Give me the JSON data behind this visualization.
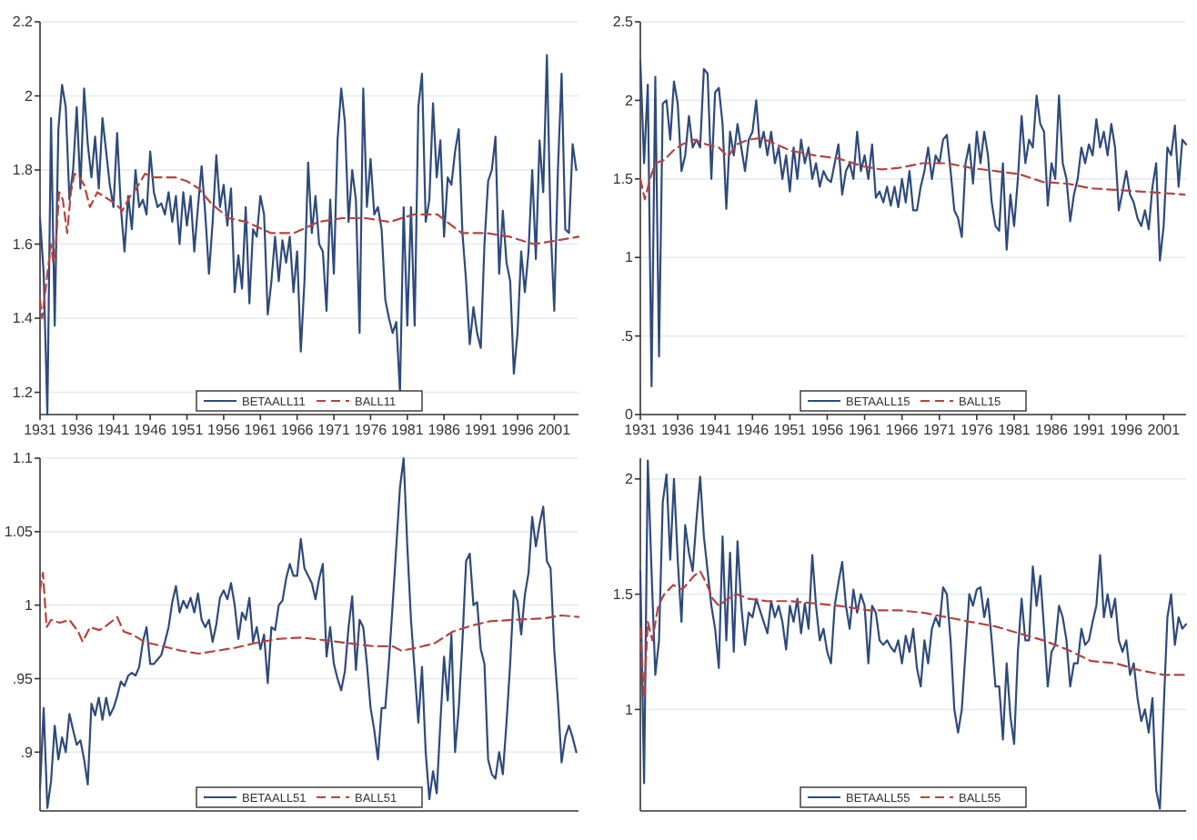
{
  "chart_data": [
    {
      "type": "line",
      "xlim": [
        1931,
        2004.3
      ],
      "ylim": [
        1.14,
        2.2
      ],
      "xticks": [
        1931,
        1936,
        1941,
        1946,
        1951,
        1956,
        1961,
        1966,
        1971,
        1976,
        1981,
        1986,
        1991,
        1996,
        2001
      ],
      "yticks": [
        1.2,
        1.4,
        1.6,
        1.8,
        2,
        2.2
      ],
      "grid": "y",
      "legend": "bottom",
      "x": [
        1931,
        1931.5,
        1932,
        1932.5,
        1933,
        1933.5,
        1934,
        1934.5,
        1935,
        1935.5,
        1936,
        1936.5,
        1937,
        1937.5,
        1938,
        1938.5,
        1939,
        1939.5,
        1940,
        1940.5,
        1941,
        1941.5,
        1942,
        1942.5,
        1943,
        1943.5,
        1944,
        1944.5,
        1945,
        1945.5,
        1946,
        1946.5,
        1947,
        1947.5,
        1948,
        1948.5,
        1949,
        1949.5,
        1950,
        1950.5,
        1951,
        1951.5,
        1952,
        1952.5,
        1953,
        1953.5,
        1954,
        1954.5,
        1955,
        1955.5,
        1956,
        1956.5,
        1957,
        1957.5,
        1958,
        1958.5,
        1959,
        1959.5,
        1960,
        1960.5,
        1961,
        1961.5,
        1962,
        1962.5,
        1963,
        1963.5,
        1964,
        1964.5,
        1965,
        1965.5,
        1966,
        1966.5,
        1967,
        1967.5,
        1968,
        1968.5,
        1969,
        1969.5,
        1970,
        1970.5,
        1971,
        1971.5,
        1972,
        1972.5,
        1973,
        1973.5,
        1974,
        1974.5,
        1975,
        1975.5,
        1976,
        1976.5,
        1977,
        1977.5,
        1978,
        1978.5,
        1979,
        1979.5,
        1980,
        1980.5,
        1981,
        1981.5,
        1982,
        1982.5,
        1983,
        1983.5,
        1984,
        1984.5,
        1985,
        1985.5,
        1986,
        1986.5,
        1987,
        1987.5,
        1988,
        1988.5,
        1989,
        1989.5,
        1990,
        1990.5,
        1991,
        1991.5,
        1992,
        1992.5,
        1993,
        1993.5,
        1994,
        1994.5,
        1995,
        1995.5,
        1996,
        1996.5,
        1997,
        1997.5,
        1998,
        1998.5,
        1999,
        1999.5,
        2000,
        2000.5,
        2001,
        2001.5,
        2002,
        2002.5,
        2003,
        2003.5,
        2004
      ],
      "series": [
        {
          "name": "BETAALL11",
          "color": "#2e4a7d",
          "line_style": "solid",
          "values": [
            1.67,
            1.52,
            1.14,
            1.94,
            1.38,
            1.91,
            2.03,
            1.97,
            1.72,
            1.8,
            1.97,
            1.75,
            2.02,
            1.87,
            1.78,
            1.89,
            1.75,
            1.94,
            1.85,
            1.76,
            1.7,
            1.9,
            1.7,
            1.58,
            1.73,
            1.64,
            1.8,
            1.7,
            1.72,
            1.68,
            1.85,
            1.74,
            1.7,
            1.71,
            1.68,
            1.74,
            1.66,
            1.73,
            1.6,
            1.74,
            1.65,
            1.73,
            1.58,
            1.7,
            1.81,
            1.68,
            1.52,
            1.66,
            1.84,
            1.7,
            1.76,
            1.65,
            1.75,
            1.47,
            1.57,
            1.48,
            1.7,
            1.44,
            1.64,
            1.62,
            1.73,
            1.68,
            1.41,
            1.5,
            1.62,
            1.5,
            1.61,
            1.55,
            1.62,
            1.47,
            1.58,
            1.31,
            1.5,
            1.82,
            1.63,
            1.73,
            1.6,
            1.58,
            1.42,
            1.72,
            1.52,
            1.88,
            2.02,
            1.93,
            1.66,
            1.8,
            1.72,
            1.36,
            2.02,
            1.7,
            1.83,
            1.68,
            1.7,
            1.64,
            1.45,
            1.4,
            1.36,
            1.39,
            1.2,
            1.7,
            1.38,
            1.7,
            1.38,
            1.97,
            2.06,
            1.66,
            1.72,
            1.98,
            1.78,
            1.88,
            1.62,
            1.78,
            1.76,
            1.85,
            1.91,
            1.63,
            1.5,
            1.33,
            1.43,
            1.36,
            1.32,
            1.6,
            1.77,
            1.8,
            1.89,
            1.52,
            1.69,
            1.55,
            1.5,
            1.25,
            1.36,
            1.58,
            1.47,
            1.58,
            1.8,
            1.56,
            1.88,
            1.74,
            2.11,
            1.65,
            1.42,
            1.8,
            2.06,
            1.64,
            1.63,
            1.87,
            1.8
          ]
        },
        {
          "name": "BALL11",
          "color": "#b5443f",
          "line_style": "dashed",
          "x": [
            1931,
            1931.3,
            1931.7,
            1932,
            1932.5,
            1932.8,
            1933.1,
            1933.6,
            1934.1,
            1934.7,
            1935.2,
            1935.7,
            1936.4,
            1937,
            1937.8,
            1938.8,
            1939.6,
            1940.4,
            1941.2,
            1942.2,
            1943.3,
            1944.1,
            1945.3,
            1946.5,
            1948.2,
            1949.4,
            1951,
            1952.6,
            1954.3,
            1956.7,
            1959.1,
            1962.4,
            1965.6,
            1968.9,
            1972.1,
            1975.4,
            1978.6,
            1981.9,
            1985.1,
            1988.4,
            1991.7,
            1994.9,
            1998.2,
            2001.4,
            2004.3
          ],
          "values": [
            1.45,
            1.4,
            1.47,
            1.52,
            1.6,
            1.55,
            1.58,
            1.74,
            1.72,
            1.63,
            1.74,
            1.79,
            1.78,
            1.76,
            1.7,
            1.74,
            1.73,
            1.72,
            1.71,
            1.69,
            1.73,
            1.75,
            1.79,
            1.78,
            1.78,
            1.78,
            1.77,
            1.75,
            1.71,
            1.67,
            1.66,
            1.63,
            1.63,
            1.66,
            1.67,
            1.67,
            1.66,
            1.68,
            1.68,
            1.63,
            1.63,
            1.62,
            1.6,
            1.61,
            1.62
          ]
        }
      ]
    },
    {
      "type": "line",
      "xlim": [
        1931,
        2004
      ],
      "ylim": [
        0,
        2.5
      ],
      "xticks": [
        1931,
        1936,
        1941,
        1946,
        1951,
        1956,
        1961,
        1966,
        1971,
        1976,
        1981,
        1986,
        1991,
        1996,
        2001
      ],
      "yticks": [
        0,
        {
          "value": 0.5,
          "label": ".5"
        },
        1,
        1.5,
        2,
        2.5
      ],
      "grid": "y",
      "legend": "bottom",
      "x": [
        1931,
        1931.5,
        1932,
        1932.5,
        1933,
        1933.5,
        1934,
        1934.5,
        1935,
        1935.5,
        1936,
        1936.5,
        1937,
        1937.5,
        1938,
        1938.5,
        1939,
        1939.5,
        1940,
        1940.5,
        1941,
        1941.5,
        1942,
        1942.5,
        1943,
        1943.5,
        1944,
        1944.5,
        1945,
        1945.5,
        1946,
        1946.5,
        1947,
        1947.5,
        1948,
        1948.5,
        1949,
        1949.5,
        1950,
        1950.5,
        1951,
        1951.5,
        1952,
        1952.5,
        1953,
        1953.5,
        1954,
        1954.5,
        1955,
        1955.5,
        1956,
        1956.5,
        1957,
        1957.5,
        1958,
        1958.5,
        1959,
        1959.5,
        1960,
        1960.5,
        1961,
        1961.5,
        1962,
        1962.5,
        1963,
        1963.5,
        1964,
        1964.5,
        1965,
        1965.5,
        1966,
        1966.5,
        1967,
        1967.5,
        1968,
        1968.5,
        1969,
        1969.5,
        1970,
        1970.5,
        1971,
        1971.5,
        1972,
        1972.5,
        1973,
        1973.5,
        1974,
        1974.5,
        1975,
        1975.5,
        1976,
        1976.5,
        1977,
        1977.5,
        1978,
        1978.5,
        1979,
        1979.5,
        1980,
        1980.5,
        1981,
        1981.5,
        1982,
        1982.5,
        1983,
        1983.5,
        1984,
        1984.5,
        1985,
        1985.5,
        1986,
        1986.5,
        1987,
        1987.5,
        1988,
        1988.5,
        1989,
        1989.5,
        1990,
        1990.5,
        1991,
        1991.5,
        1992,
        1992.5,
        1993,
        1993.5,
        1994,
        1994.5,
        1995,
        1995.5,
        1996,
        1996.5,
        1997,
        1997.5,
        1998,
        1998.5,
        1999,
        1999.5,
        2000,
        2000.5,
        2001,
        2001.5,
        2002,
        2002.5,
        2003,
        2003.5,
        2004
      ],
      "series": [
        {
          "name": "BETAALL15",
          "color": "#2e4a7d",
          "line_style": "solid",
          "values": [
            2.25,
            1.6,
            2.1,
            0.18,
            2.15,
            0.37,
            1.98,
            2.0,
            1.75,
            2.12,
            1.98,
            1.55,
            1.65,
            1.9,
            1.7,
            1.75,
            1.7,
            2.2,
            2.17,
            1.5,
            2.05,
            2.08,
            1.85,
            1.31,
            1.8,
            1.65,
            1.85,
            1.7,
            1.55,
            1.75,
            1.8,
            2.0,
            1.7,
            1.8,
            1.65,
            1.8,
            1.6,
            1.7,
            1.5,
            1.65,
            1.42,
            1.7,
            1.5,
            1.75,
            1.6,
            1.7,
            1.5,
            1.6,
            1.45,
            1.55,
            1.5,
            1.48,
            1.6,
            1.72,
            1.4,
            1.55,
            1.6,
            1.5,
            1.8,
            1.55,
            1.65,
            1.5,
            1.72,
            1.38,
            1.42,
            1.35,
            1.45,
            1.33,
            1.45,
            1.32,
            1.5,
            1.35,
            1.55,
            1.3,
            1.3,
            1.45,
            1.55,
            1.7,
            1.5,
            1.65,
            1.6,
            1.75,
            1.78,
            1.55,
            1.3,
            1.25,
            1.13,
            1.6,
            1.72,
            1.47,
            1.8,
            1.6,
            1.8,
            1.65,
            1.35,
            1.2,
            1.17,
            1.6,
            1.05,
            1.4,
            1.2,
            1.5,
            1.9,
            1.6,
            1.75,
            1.7,
            2.03,
            1.85,
            1.8,
            1.33,
            1.6,
            1.5,
            2.03,
            1.6,
            1.5,
            1.23,
            1.4,
            1.5,
            1.7,
            1.6,
            1.72,
            1.65,
            1.88,
            1.7,
            1.8,
            1.65,
            1.85,
            1.7,
            1.3,
            1.42,
            1.55,
            1.4,
            1.35,
            1.25,
            1.2,
            1.3,
            1.18,
            1.45,
            1.6,
            0.98,
            1.2,
            1.7,
            1.65,
            1.84,
            1.45,
            1.75,
            1.72
          ]
        },
        {
          "name": "BALL15",
          "color": "#b5443f",
          "line_style": "dashed",
          "x": [
            1931,
            1931.6,
            1932.3,
            1933,
            1934.2,
            1935.4,
            1936.6,
            1938.2,
            1939.8,
            1941.5,
            1942.7,
            1943.9,
            1945.5,
            1947.1,
            1948.7,
            1951.1,
            1954.3,
            1957.5,
            1960.8,
            1963.2,
            1965.6,
            1968.8,
            1972,
            1975.2,
            1978.5,
            1981.7,
            1984.9,
            1988.1,
            1991.3,
            1994.6,
            1997.8,
            2001,
            2003.8
          ],
          "values": [
            1.5,
            1.37,
            1.5,
            1.6,
            1.62,
            1.68,
            1.72,
            1.75,
            1.72,
            1.7,
            1.64,
            1.72,
            1.75,
            1.76,
            1.73,
            1.68,
            1.65,
            1.63,
            1.58,
            1.56,
            1.57,
            1.6,
            1.6,
            1.57,
            1.55,
            1.53,
            1.48,
            1.47,
            1.44,
            1.43,
            1.42,
            1.41,
            1.4
          ]
        }
      ]
    },
    {
      "type": "line",
      "xlim": [
        1931,
        2004.3
      ],
      "ylim": [
        0.86,
        1.1
      ],
      "tick_labels": "y",
      "yticks": [
        {
          "value": 0.9,
          "label": ".9"
        },
        {
          "value": 0.95,
          "label": ".95"
        },
        1,
        1.05,
        1.1
      ],
      "grid": "y",
      "legend": "bottom",
      "x": [
        1931,
        1931.5,
        1932,
        1932.5,
        1933,
        1933.5,
        1934,
        1934.5,
        1935,
        1935.5,
        1936,
        1936.5,
        1937,
        1937.5,
        1938,
        1938.5,
        1939,
        1939.5,
        1940,
        1940.5,
        1941,
        1941.5,
        1942,
        1942.5,
        1943,
        1943.5,
        1944,
        1944.5,
        1945,
        1945.5,
        1946,
        1946.5,
        1947,
        1947.5,
        1948,
        1948.5,
        1949,
        1949.5,
        1950,
        1950.5,
        1951,
        1951.5,
        1952,
        1952.5,
        1953,
        1953.5,
        1954,
        1954.5,
        1955,
        1955.5,
        1956,
        1956.5,
        1957,
        1957.5,
        1958,
        1958.5,
        1959,
        1959.5,
        1960,
        1960.5,
        1961,
        1961.5,
        1962,
        1962.5,
        1963,
        1963.5,
        1964,
        1964.5,
        1965,
        1965.5,
        1966,
        1966.5,
        1967,
        1967.5,
        1968,
        1968.5,
        1969,
        1969.5,
        1970,
        1970.5,
        1971,
        1971.5,
        1972,
        1972.5,
        1973,
        1973.5,
        1974,
        1974.5,
        1975,
        1975.5,
        1976,
        1976.5,
        1977,
        1977.5,
        1978,
        1978.5,
        1979,
        1979.5,
        1980,
        1980.5,
        1981,
        1981.5,
        1982,
        1982.5,
        1983,
        1983.5,
        1984,
        1984.5,
        1985,
        1985.5,
        1986,
        1986.5,
        1987,
        1987.5,
        1988,
        1988.5,
        1989,
        1989.5,
        1990,
        1990.5,
        1991,
        1991.5,
        1992,
        1992.5,
        1993,
        1993.5,
        1994,
        1994.5,
        1995,
        1995.5,
        1996,
        1996.5,
        1997,
        1997.5,
        1998,
        1998.5,
        1999,
        1999.5,
        2000,
        2000.5,
        2001,
        2001.5,
        2002,
        2002.5,
        2003,
        2003.5,
        2004
      ],
      "series": [
        {
          "name": "BETAALL51",
          "color": "#2e4a7d",
          "line_style": "solid",
          "values": [
            0.875,
            0.93,
            0.862,
            0.88,
            0.918,
            0.895,
            0.91,
            0.9,
            0.926,
            0.915,
            0.905,
            0.908,
            0.895,
            0.878,
            0.933,
            0.925,
            0.937,
            0.922,
            0.937,
            0.925,
            0.93,
            0.938,
            0.948,
            0.945,
            0.952,
            0.954,
            0.952,
            0.958,
            0.975,
            0.985,
            0.96,
            0.96,
            0.963,
            0.966,
            0.975,
            0.985,
            1.002,
            1.013,
            0.995,
            1.003,
            0.998,
            1.005,
            0.995,
            1.008,
            0.99,
            0.985,
            0.99,
            0.975,
            0.987,
            1.005,
            1.01,
            1.004,
            1.015,
            1.0,
            0.977,
            0.995,
            0.99,
            1.005,
            0.975,
            0.985,
            0.97,
            0.98,
            0.947,
            0.985,
            0.983,
            1.0,
            1.003,
            1.018,
            1.028,
            1.02,
            1.02,
            1.045,
            1.025,
            1.02,
            1.015,
            1.004,
            1.018,
            1.028,
            0.965,
            0.985,
            0.96,
            0.95,
            0.942,
            0.955,
            0.985,
            1.006,
            0.956,
            0.99,
            0.985,
            0.96,
            0.93,
            0.915,
            0.895,
            0.93,
            0.93,
            0.962,
            1.0,
            1.04,
            1.08,
            1.1,
            1.04,
            0.99,
            0.955,
            0.92,
            0.958,
            0.9,
            0.868,
            0.887,
            0.872,
            0.92,
            0.965,
            0.935,
            0.98,
            0.9,
            0.93,
            0.975,
            1.03,
            1.035,
            1.0,
            1.002,
            0.97,
            0.96,
            0.895,
            0.885,
            0.882,
            0.9,
            0.885,
            0.92,
            0.96,
            1.01,
            1.003,
            0.98,
            1.007,
            1.022,
            1.06,
            1.04,
            1.055,
            1.067,
            1.03,
            1.025,
            0.97,
            0.935,
            0.893,
            0.91,
            0.918,
            0.91,
            0.9
          ]
        },
        {
          "name": "BALL51",
          "color": "#b5443f",
          "line_style": "dashed",
          "x": [
            1931,
            1931.4,
            1931.9,
            1932.5,
            1933.7,
            1935,
            1936.2,
            1936.8,
            1937.8,
            1939.1,
            1940.3,
            1941.5,
            1942.4,
            1943.6,
            1945.2,
            1947.7,
            1950.2,
            1952.6,
            1955.1,
            1957.6,
            1960.1,
            1963.3,
            1966.6,
            1969.9,
            1973.2,
            1976.5,
            1979,
            1980.2,
            1982.3,
            1984.7,
            1987.2,
            1989.7,
            1992.2,
            1995.4,
            1999.6,
            2002,
            2004.3
          ],
          "values": [
            1.01,
            1.022,
            0.985,
            0.99,
            0.988,
            0.99,
            0.982,
            0.975,
            0.985,
            0.983,
            0.987,
            0.992,
            0.982,
            0.98,
            0.975,
            0.972,
            0.969,
            0.967,
            0.969,
            0.971,
            0.974,
            0.977,
            0.978,
            0.976,
            0.974,
            0.972,
            0.972,
            0.969,
            0.971,
            0.974,
            0.982,
            0.986,
            0.989,
            0.99,
            0.991,
            0.993,
            0.992
          ]
        }
      ]
    },
    {
      "type": "line",
      "xlim": [
        1931,
        2004
      ],
      "ylim": [
        0.56,
        2.09
      ],
      "tick_labels": "y",
      "yticks": [
        1,
        1.5,
        2
      ],
      "grid": "y",
      "legend": "bottom",
      "x": [
        1931,
        1931.5,
        1932,
        1932.5,
        1933,
        1933.5,
        1934,
        1934.5,
        1935,
        1935.5,
        1936,
        1936.5,
        1937,
        1937.5,
        1938,
        1938.5,
        1939,
        1939.5,
        1940,
        1940.5,
        1941,
        1941.5,
        1942,
        1942.5,
        1943,
        1943.5,
        1944,
        1944.5,
        1945,
        1945.5,
        1946,
        1946.5,
        1947,
        1947.5,
        1948,
        1948.5,
        1949,
        1949.5,
        1950,
        1950.5,
        1951,
        1951.5,
        1952,
        1952.5,
        1953,
        1953.5,
        1954,
        1954.5,
        1955,
        1955.5,
        1956,
        1956.5,
        1957,
        1957.5,
        1958,
        1958.5,
        1959,
        1959.5,
        1960,
        1960.5,
        1961,
        1961.5,
        1962,
        1962.5,
        1963,
        1963.5,
        1964,
        1964.5,
        1965,
        1965.5,
        1966,
        1966.5,
        1967,
        1967.5,
        1968,
        1968.5,
        1969,
        1969.5,
        1970,
        1970.5,
        1971,
        1971.5,
        1972,
        1972.5,
        1973,
        1973.5,
        1974,
        1974.5,
        1975,
        1975.5,
        1976,
        1976.5,
        1977,
        1977.5,
        1978,
        1978.5,
        1979,
        1979.5,
        1980,
        1980.5,
        1981,
        1981.5,
        1982,
        1982.5,
        1983,
        1983.5,
        1984,
        1984.5,
        1985,
        1985.5,
        1986,
        1986.5,
        1987,
        1987.5,
        1988,
        1988.5,
        1989,
        1989.5,
        1990,
        1990.5,
        1991,
        1991.5,
        1992,
        1992.5,
        1993,
        1993.5,
        1994,
        1994.5,
        1995,
        1995.5,
        1996,
        1996.5,
        1997,
        1997.5,
        1998,
        1998.5,
        1999,
        1999.5,
        2000,
        2000.5,
        2001,
        2001.5,
        2002,
        2002.5,
        2003,
        2003.5,
        2004
      ],
      "series": [
        {
          "name": "BETAALL55",
          "color": "#2e4a7d",
          "line_style": "solid",
          "values": [
            1.6,
            0.68,
            2.08,
            1.6,
            1.15,
            1.3,
            1.9,
            2.02,
            1.65,
            2.0,
            1.65,
            1.38,
            1.8,
            1.68,
            1.6,
            1.82,
            2.01,
            1.75,
            1.6,
            1.45,
            1.35,
            1.18,
            1.75,
            1.3,
            1.68,
            1.25,
            1.73,
            1.45,
            1.28,
            1.42,
            1.4,
            1.48,
            1.43,
            1.38,
            1.33,
            1.47,
            1.4,
            1.45,
            1.38,
            1.26,
            1.45,
            1.38,
            1.48,
            1.33,
            1.46,
            1.35,
            1.67,
            1.45,
            1.3,
            1.35,
            1.25,
            1.2,
            1.45,
            1.55,
            1.64,
            1.45,
            1.35,
            1.52,
            1.42,
            1.5,
            1.45,
            1.2,
            1.45,
            1.42,
            1.3,
            1.28,
            1.3,
            1.27,
            1.25,
            1.3,
            1.2,
            1.32,
            1.25,
            1.35,
            1.18,
            1.1,
            1.3,
            1.2,
            1.35,
            1.4,
            1.36,
            1.53,
            1.5,
            1.3,
            1.0,
            0.9,
            1.0,
            1.25,
            1.5,
            1.45,
            1.52,
            1.53,
            1.4,
            1.48,
            1.3,
            1.1,
            1.1,
            0.87,
            1.2,
            0.97,
            0.85,
            1.25,
            1.48,
            1.3,
            1.3,
            1.62,
            1.45,
            1.58,
            1.35,
            1.1,
            1.25,
            1.28,
            1.45,
            1.4,
            1.3,
            1.1,
            1.2,
            1.2,
            1.35,
            1.28,
            1.3,
            1.38,
            1.45,
            1.67,
            1.4,
            1.5,
            1.4,
            1.48,
            1.3,
            1.25,
            1.3,
            1.15,
            1.2,
            1.05,
            0.95,
            1.0,
            0.9,
            1.05,
            0.65,
            0.57,
            1.0,
            1.4,
            1.5,
            1.28,
            1.4,
            1.35,
            1.37
          ]
        },
        {
          "name": "BALL55",
          "color": "#b5443f",
          "line_style": "dashed",
          "x": [
            1931,
            1931.5,
            1932,
            1932.6,
            1933.4,
            1934.2,
            1935.4,
            1936.6,
            1938.2,
            1939,
            1939.8,
            1940.7,
            1941.5,
            1942.7,
            1943.9,
            1945.5,
            1947.9,
            1951.1,
            1954.3,
            1957.5,
            1961.6,
            1965.6,
            1968.8,
            1972,
            1975.2,
            1978.5,
            1981.7,
            1984.9,
            1988.1,
            1991.3,
            1994.6,
            1997.8,
            2001,
            2003.8
          ],
          "values": [
            1.35,
            1.05,
            1.38,
            1.3,
            1.45,
            1.5,
            1.54,
            1.52,
            1.58,
            1.6,
            1.55,
            1.48,
            1.45,
            1.48,
            1.5,
            1.48,
            1.47,
            1.47,
            1.46,
            1.45,
            1.43,
            1.43,
            1.42,
            1.4,
            1.38,
            1.36,
            1.33,
            1.3,
            1.26,
            1.21,
            1.2,
            1.17,
            1.15,
            1.15
          ]
        }
      ]
    }
  ]
}
